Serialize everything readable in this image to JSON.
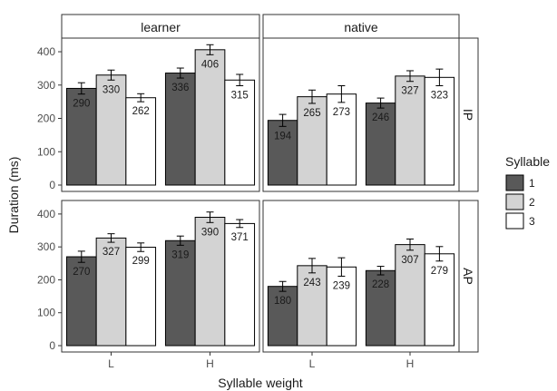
{
  "chart_data": {
    "type": "bar",
    "facets": {
      "columns": [
        "learner",
        "native"
      ],
      "rows": [
        "IP",
        "AP"
      ]
    },
    "categories": [
      "L",
      "H"
    ],
    "xlabel": "Syllable weight",
    "ylabel": "Duration (ms)",
    "ylim": [
      0,
      430
    ],
    "yticks": [
      0,
      100,
      200,
      300,
      400
    ],
    "legend": {
      "title": "Syllable",
      "entries": [
        "1",
        "2",
        "3"
      ],
      "position": "right"
    },
    "colors": {
      "1": "#595959",
      "2": "#d3d3d3",
      "3": "#ffffff",
      "outline": "#000000"
    },
    "grid": false,
    "panels": [
      {
        "column": "learner",
        "row": "IP",
        "series": [
          {
            "name": "1",
            "values": [
              290,
              336
            ],
            "error": [
              17,
              15
            ]
          },
          {
            "name": "2",
            "values": [
              330,
              406
            ],
            "error": [
              15,
              15
            ]
          },
          {
            "name": "3",
            "values": [
              262,
              315
            ],
            "error": [
              12,
              17
            ]
          }
        ]
      },
      {
        "column": "native",
        "row": "IP",
        "series": [
          {
            "name": "1",
            "values": [
              194,
              246
            ],
            "error": [
              18,
              15
            ]
          },
          {
            "name": "2",
            "values": [
              265,
              327
            ],
            "error": [
              20,
              16
            ]
          },
          {
            "name": "3",
            "values": [
              273,
              323
            ],
            "error": [
              25,
              25
            ]
          }
        ]
      },
      {
        "column": "learner",
        "row": "AP",
        "series": [
          {
            "name": "1",
            "values": [
              270,
              319
            ],
            "error": [
              17,
              14
            ]
          },
          {
            "name": "2",
            "values": [
              327,
              390
            ],
            "error": [
              13,
              16
            ]
          },
          {
            "name": "3",
            "values": [
              299,
              371
            ],
            "error": [
              13,
              12
            ]
          }
        ]
      },
      {
        "column": "native",
        "row": "AP",
        "series": [
          {
            "name": "1",
            "values": [
              180,
              228
            ],
            "error": [
              15,
              13
            ]
          },
          {
            "name": "2",
            "values": [
              243,
              307
            ],
            "error": [
              22,
              17
            ]
          },
          {
            "name": "3",
            "values": [
              239,
              279
            ],
            "error": [
              28,
              22
            ]
          }
        ]
      }
    ]
  }
}
